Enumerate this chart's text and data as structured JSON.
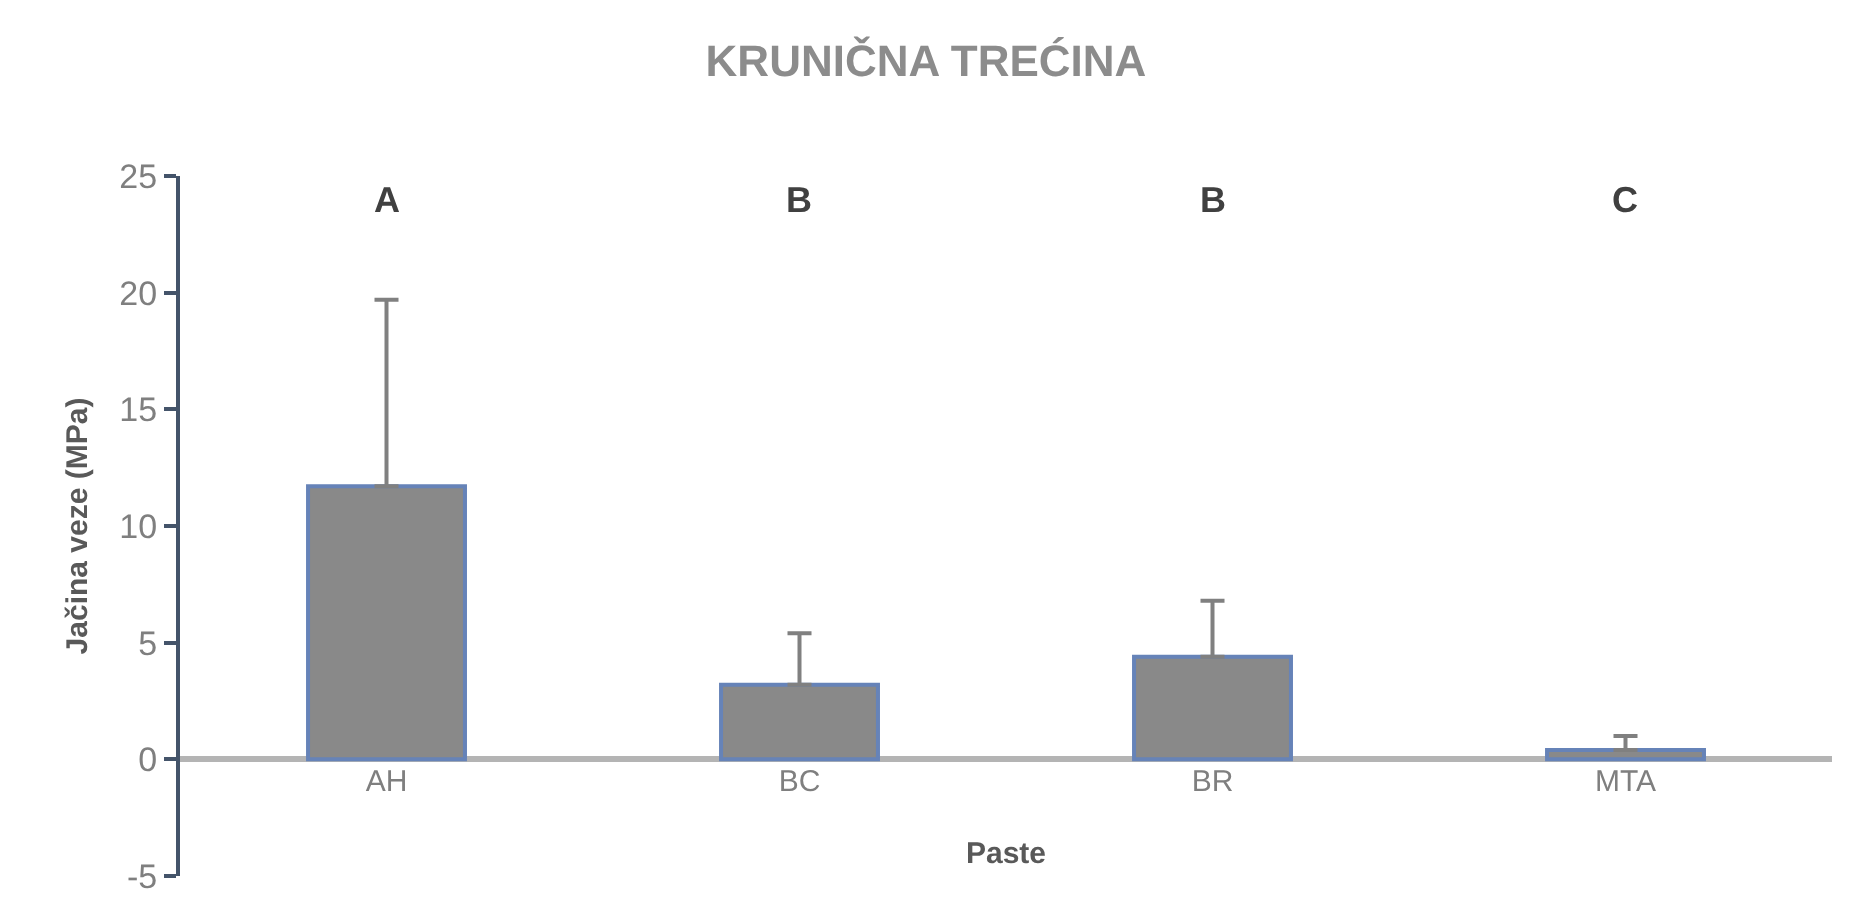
{
  "chart_data": {
    "type": "bar",
    "title": "KRUNIČNA TREĆINA",
    "xlabel": "Paste",
    "ylabel": "Jačina veze (MPa)",
    "categories": [
      "AH",
      "BC",
      "BR",
      "MTA"
    ],
    "values": [
      11.7,
      3.2,
      4.4,
      0.4
    ],
    "errors": [
      [
        11.7,
        19.7
      ],
      [
        3.2,
        5.4
      ],
      [
        4.4,
        6.8
      ],
      [
        0.4,
        1.0
      ]
    ],
    "color": "#898989",
    "ylim": [
      -5,
      25
    ],
    "yticks": [
      -5,
      0,
      5,
      10,
      15,
      20,
      25
    ],
    "annotations": [
      "A",
      "B",
      "B",
      "C"
    ]
  }
}
